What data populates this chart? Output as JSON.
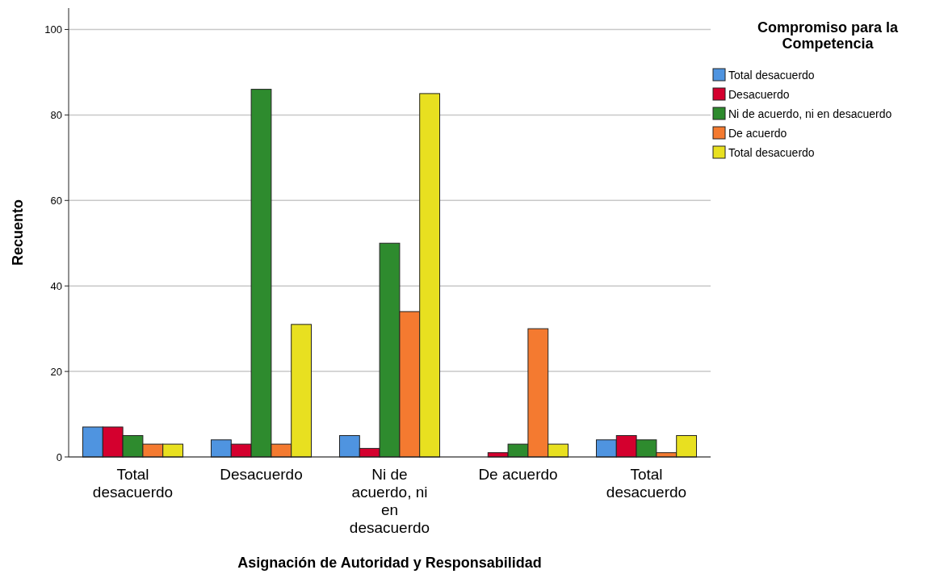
{
  "chart_data": {
    "type": "bar",
    "xlabel": "Asignación de Autoridad y Responsabilidad",
    "ylabel": "Recuento",
    "legend_title": "Compromiso para la Competencia",
    "categories": [
      "Total desacuerdo",
      "Desacuerdo",
      "Ni de acuerdo, ni en desacuerdo",
      "De acuerdo",
      "Total desacuerdo"
    ],
    "series": [
      {
        "name": "Total desacuerdo",
        "color": "#4f94e0",
        "values": [
          7,
          4,
          5,
          0,
          4
        ]
      },
      {
        "name": "Desacuerdo",
        "color": "#d4002e",
        "values": [
          7,
          3,
          2,
          1,
          5
        ]
      },
      {
        "name": "Ni de acuerdo, ni en desacuerdo",
        "color": "#2e8b2e",
        "values": [
          5,
          86,
          50,
          3,
          4
        ]
      },
      {
        "name": "De acuerdo",
        "color": "#f47a30",
        "values": [
          3,
          3,
          34,
          30,
          1
        ]
      },
      {
        "name": "Total desacuerdo",
        "color": "#e8e020",
        "values": [
          3,
          31,
          85,
          3,
          5
        ]
      }
    ],
    "ylim": [
      0,
      105
    ],
    "yticks": [
      0,
      20,
      40,
      60,
      80,
      100
    ],
    "grid": "y",
    "legend": "top right"
  }
}
